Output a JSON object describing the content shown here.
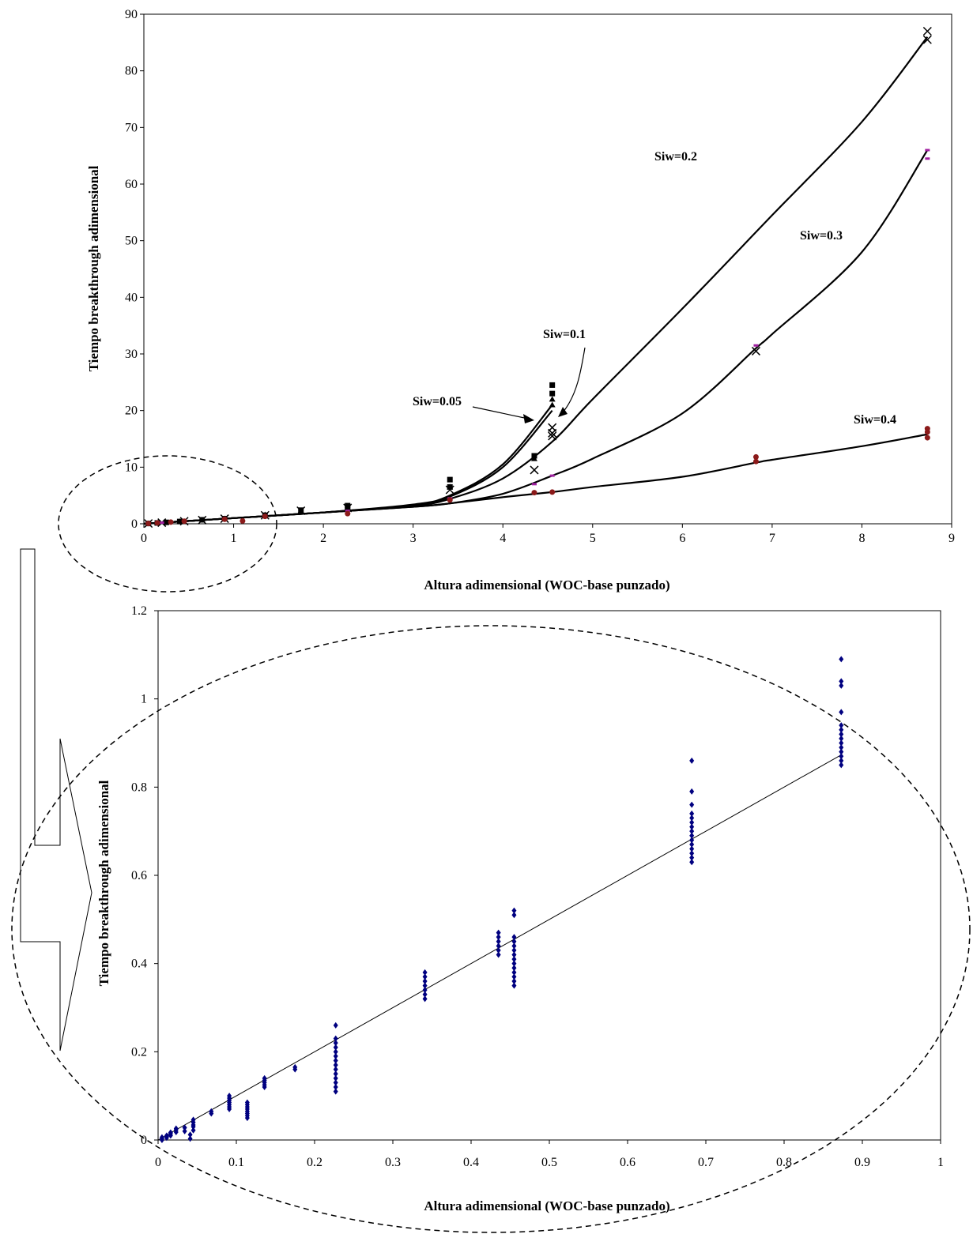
{
  "chart_data": [
    {
      "type": "scatter",
      "xlabel": "Altura adimensional (WOC-base punzado)",
      "ylabel": "Tiempo breakthrough adimensional",
      "xlim": [
        0,
        9
      ],
      "ylim": [
        0,
        90
      ],
      "x_ticks": [
        "0",
        "1",
        "2",
        "3",
        "4",
        "5",
        "6",
        "7",
        "8",
        "9"
      ],
      "y_ticks": [
        "0",
        "10",
        "20",
        "30",
        "40",
        "50",
        "60",
        "70",
        "80",
        "90"
      ],
      "grid": false,
      "legend": "none",
      "annotations": [
        "Siw=0.05",
        "Siw=0.1",
        "Siw=0.2",
        "Siw=0.3",
        "Siw=0.4"
      ],
      "series": [
        {
          "name": "Siw=0.05",
          "marker": "square",
          "color": "#000000",
          "x": [
            0.05,
            0.15,
            0.25,
            0.4,
            0.65,
            0.9,
            1.35,
            1.75,
            2.27,
            2.27,
            3.41,
            3.41,
            4.35,
            4.55,
            4.55
          ],
          "y": [
            0.05,
            0.15,
            0.25,
            0.4,
            0.7,
            0.9,
            1.5,
            2.4,
            2.9,
            3.2,
            7.8,
            6.5,
            12.0,
            24.5,
            23.0
          ],
          "fit": {
            "x": [
              0,
              1,
              2,
              3,
              3.41,
              4,
              4.55
            ],
            "y": [
              0,
              1,
              2,
              3.4,
              5.0,
              10.5,
              21.0
            ]
          }
        },
        {
          "name": "Siw=0.1",
          "marker": "triangle",
          "color": "#000000",
          "x": [
            0.05,
            0.15,
            0.4,
            0.9,
            1.35,
            1.75,
            2.27,
            3.41,
            4.35,
            4.55,
            4.55
          ],
          "y": [
            0.05,
            0.15,
            0.4,
            0.9,
            1.6,
            2.3,
            2.9,
            6.5,
            11.5,
            22.0,
            21.0
          ],
          "fit": {
            "x": [
              0,
              1,
              2,
              3,
              3.41,
              4,
              4.55
            ],
            "y": [
              0,
              1,
              2,
              3.3,
              4.8,
              10.0,
              20.0
            ]
          }
        },
        {
          "name": "Siw=0.2",
          "marker": "x",
          "color": "#000000",
          "x": [
            0.05,
            0.2,
            0.45,
            0.65,
            0.9,
            1.35,
            1.75,
            2.27,
            3.41,
            4.35,
            4.55,
            4.55,
            4.55,
            6.82,
            8.73,
            8.73
          ],
          "y": [
            0.05,
            0.2,
            0.45,
            0.65,
            0.9,
            1.5,
            2.3,
            2.8,
            6.0,
            9.5,
            17.0,
            16.0,
            15.5,
            30.5,
            87.0,
            85.5
          ],
          "fit": {
            "x": [
              0,
              1,
              2,
              3,
              3.41,
              4,
              4.55,
              5,
              6,
              7,
              8,
              8.73
            ],
            "y": [
              0,
              1,
              2,
              3.2,
              4.4,
              8.0,
              14.5,
              22.0,
              38.0,
              54.5,
              71.0,
              86.0
            ]
          }
        },
        {
          "name": "Siw=0.3",
          "marker": "dash",
          "color": "#a020a0",
          "x": [
            0.05,
            0.2,
            0.45,
            0.9,
            1.35,
            2.27,
            3.41,
            4.35,
            4.55,
            6.82,
            8.73,
            8.73
          ],
          "y": [
            0.05,
            0.2,
            0.45,
            0.9,
            1.4,
            2.3,
            4.5,
            7.0,
            8.5,
            31.5,
            66.0,
            64.5
          ],
          "fit": {
            "x": [
              0,
              1,
              2,
              3,
              3.41,
              4,
              4.55,
              5,
              6,
              6.82,
              7,
              8,
              8.73
            ],
            "y": [
              0,
              1,
              2,
              3.0,
              3.6,
              5.3,
              8.5,
              11.5,
              19.5,
              31.0,
              33.5,
              48.0,
              66.0
            ]
          }
        },
        {
          "name": "Siw=0.4",
          "marker": "circle",
          "color": "#8b1a1a",
          "x": [
            0.05,
            0.15,
            0.3,
            0.45,
            0.9,
            1.1,
            1.35,
            2.27,
            3.41,
            4.35,
            4.55,
            6.82,
            6.82,
            8.73,
            8.73,
            8.73
          ],
          "y": [
            0.05,
            0.15,
            0.3,
            0.45,
            0.8,
            0.5,
            1.3,
            1.8,
            4.2,
            5.5,
            5.6,
            11.0,
            11.8,
            15.2,
            16.2,
            16.8
          ],
          "fit": {
            "x": [
              0,
              1,
              2,
              3,
              3.41,
              4,
              4.55,
              5,
              6,
              6.82,
              7,
              8,
              8.73
            ],
            "y": [
              0,
              1,
              2,
              3.0,
              3.6,
              4.7,
              5.6,
              6.5,
              8.3,
              10.8,
              11.3,
              13.7,
              15.8
            ]
          }
        }
      ]
    },
    {
      "type": "scatter",
      "xlabel": "Altura adimensional (WOC-base punzado)",
      "ylabel": "Tiempo breakthrough adimensional",
      "xlim": [
        0,
        1
      ],
      "ylim": [
        0,
        1.2
      ],
      "x_ticks": [
        "0",
        "0.1",
        "0.2",
        "0.3",
        "0.4",
        "0.5",
        "0.6",
        "0.7",
        "0.8",
        "0.9",
        "1"
      ],
      "y_ticks": [
        "0",
        "0.2",
        "0.4",
        "0.6",
        "0.8",
        "1",
        "1.2"
      ],
      "grid": false,
      "legend": "none",
      "marker": "diamond",
      "marker_color": "#000080",
      "fit_line": {
        "x": [
          0,
          0.873
        ],
        "y": [
          0,
          0.873
        ]
      },
      "groups": [
        {
          "x": 0.005,
          "y": [
            0.0,
            0.003,
            0.006
          ]
        },
        {
          "x": 0.011,
          "y": [
            0.005,
            0.008,
            0.01
          ]
        },
        {
          "x": 0.016,
          "y": [
            0.01,
            0.014,
            0.017
          ]
        },
        {
          "x": 0.023,
          "y": [
            0.018,
            0.023,
            0.026
          ]
        },
        {
          "x": 0.034,
          "y": [
            0.02,
            0.028
          ]
        },
        {
          "x": 0.041,
          "y": [
            0.003,
            0.012
          ]
        },
        {
          "x": 0.045,
          "y": [
            0.022,
            0.03,
            0.034,
            0.04,
            0.046
          ]
        },
        {
          "x": 0.068,
          "y": [
            0.06,
            0.065
          ]
        },
        {
          "x": 0.091,
          "y": [
            0.07,
            0.075,
            0.08,
            0.085,
            0.09,
            0.095,
            0.1
          ]
        },
        {
          "x": 0.114,
          "y": [
            0.05,
            0.055,
            0.06,
            0.065,
            0.07,
            0.075,
            0.08,
            0.085
          ]
        },
        {
          "x": 0.136,
          "y": [
            0.12,
            0.125,
            0.13,
            0.135,
            0.14
          ]
        },
        {
          "x": 0.175,
          "y": [
            0.16,
            0.165
          ]
        },
        {
          "x": 0.227,
          "y": [
            0.11,
            0.12,
            0.13,
            0.14,
            0.15,
            0.16,
            0.17,
            0.18,
            0.19,
            0.2,
            0.21,
            0.22,
            0.23,
            0.26
          ]
        },
        {
          "x": 0.341,
          "y": [
            0.32,
            0.33,
            0.34,
            0.35,
            0.36,
            0.37,
            0.38
          ]
        },
        {
          "x": 0.435,
          "y": [
            0.42,
            0.43,
            0.44,
            0.45,
            0.46,
            0.47
          ]
        },
        {
          "x": 0.455,
          "y": [
            0.35,
            0.36,
            0.37,
            0.38,
            0.39,
            0.4,
            0.41,
            0.42,
            0.43,
            0.44,
            0.45,
            0.46,
            0.51,
            0.52
          ]
        },
        {
          "x": 0.682,
          "y": [
            0.63,
            0.64,
            0.65,
            0.66,
            0.67,
            0.68,
            0.69,
            0.7,
            0.71,
            0.72,
            0.73,
            0.74,
            0.76,
            0.79,
            0.86
          ]
        },
        {
          "x": 0.873,
          "y": [
            0.85,
            0.86,
            0.87,
            0.88,
            0.89,
            0.9,
            0.91,
            0.92,
            0.93,
            0.94,
            0.97,
            1.03,
            1.04,
            1.09
          ]
        }
      ]
    }
  ]
}
